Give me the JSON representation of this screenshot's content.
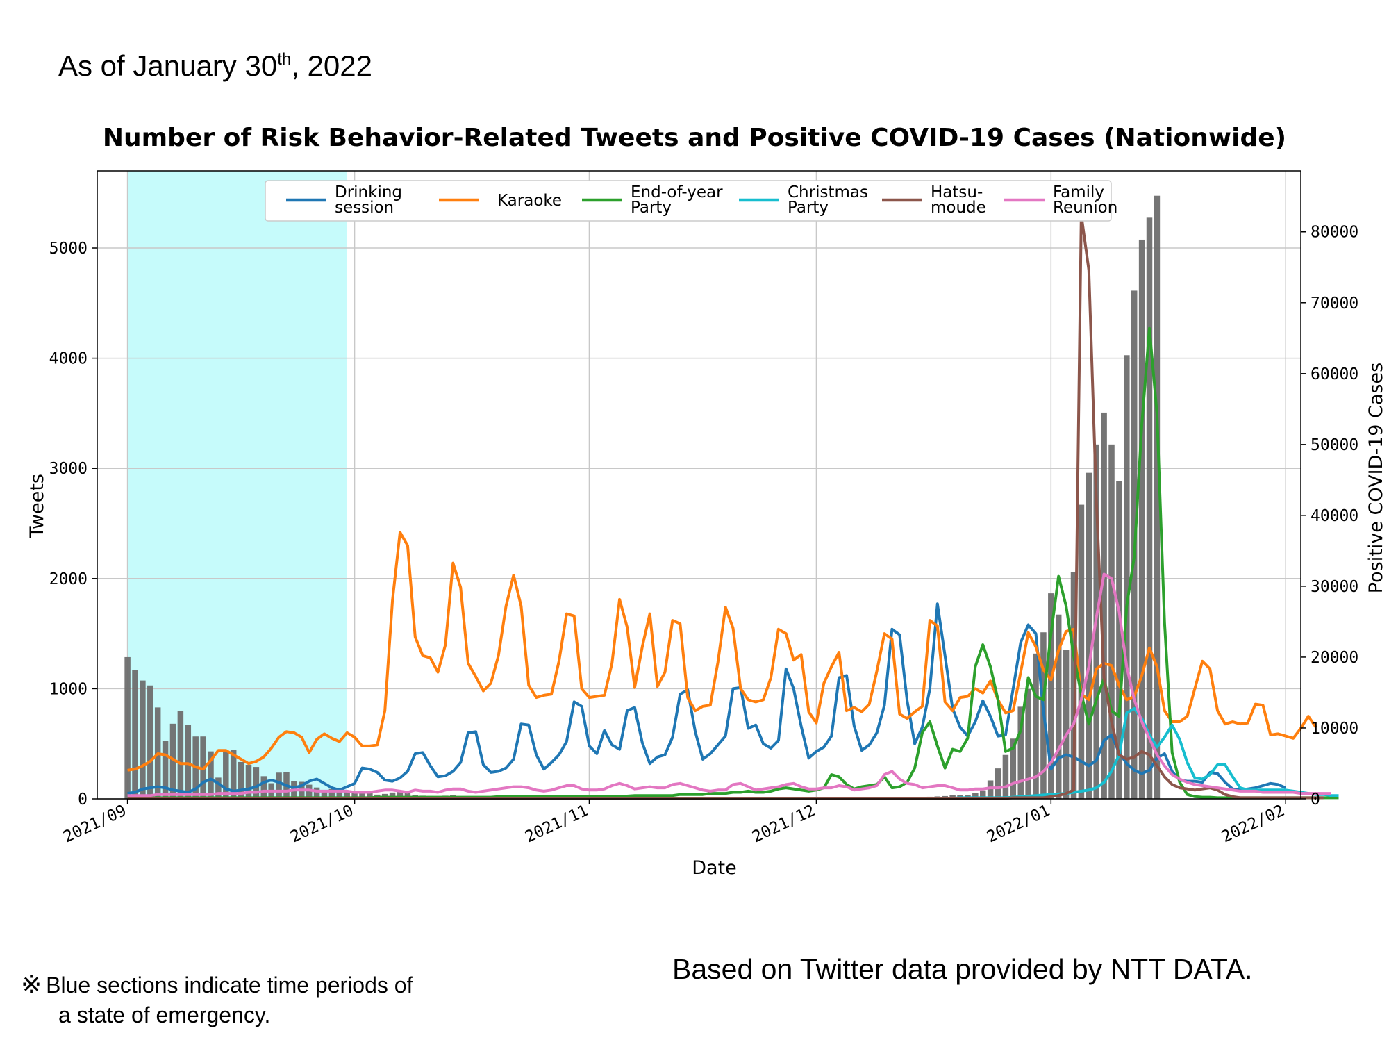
{
  "header": {
    "asof_prefix": "As of January 30",
    "asof_sup": "th",
    "asof_suffix": ", 2022"
  },
  "footer": {
    "note_mark": "※",
    "note_line1": "Blue sections indicate time periods of",
    "note_line2": "a state of emergency.",
    "source": "Based on Twitter data provided by NTT DATA."
  },
  "chart_data": {
    "type": "line",
    "title": "Number of Risk Behavior-Related Tweets and Positive COVID-19 Cases (Nationwide)",
    "xlabel": "Date",
    "ylabel": "Tweets",
    "y2label": "Positive COVID-19 Cases",
    "xlim": [
      "2021-08-28",
      "2022-02-03"
    ],
    "ylim": [
      0,
      5700
    ],
    "y2lim": [
      0,
      88600
    ],
    "x_ticks": [
      "2021/09",
      "2021/10",
      "2021/11",
      "2021/12",
      "2022/01",
      "2022/02"
    ],
    "y_ticks": [
      0,
      1000,
      2000,
      3000,
      4000,
      5000
    ],
    "y2_ticks": [
      0,
      10000,
      20000,
      30000,
      40000,
      50000,
      60000,
      70000,
      80000
    ],
    "grid": true,
    "legend_position": "top",
    "emergency_period": {
      "start": "2021-09-01",
      "end": "2021-09-30",
      "color": "#c6fbfb"
    },
    "bars": {
      "name": "Positive COVID-19 Cases",
      "axis": "right",
      "color": "#6e6e6e",
      "start": "2021-09-01",
      "values": [
        20000,
        18200,
        16700,
        16000,
        12900,
        8200,
        10600,
        12400,
        10400,
        8800,
        8800,
        6700,
        3000,
        6800,
        6900,
        5200,
        4800,
        4500,
        3200,
        2200,
        3700,
        3800,
        2500,
        2400,
        2000,
        1600,
        1200,
        1400,
        1000,
        1100,
        900,
        850,
        800,
        600,
        700,
        900,
        1000,
        800,
        500,
        450,
        400,
        350,
        450,
        500,
        300,
        300,
        250,
        300,
        250,
        200,
        200,
        150,
        200,
        150,
        150,
        120,
        150,
        100,
        100,
        120,
        100,
        90,
        100,
        80,
        80,
        90,
        70,
        70,
        80,
        60,
        60,
        70,
        60,
        60,
        60,
        70,
        60,
        60,
        70,
        80,
        60,
        60,
        50,
        70,
        60,
        50,
        60,
        60,
        50,
        70,
        70,
        80,
        60,
        60,
        60,
        70,
        80,
        80,
        90,
        100,
        120,
        150,
        180,
        200,
        220,
        250,
        300,
        350,
        400,
        500,
        550,
        550,
        800,
        1200,
        2600,
        4300,
        6200,
        8500,
        13000,
        15500,
        20500,
        23500,
        29000,
        26000,
        21000,
        32000,
        41500,
        46000,
        50000,
        54500,
        50000,
        44800,
        62600,
        71700,
        78900,
        82000,
        85100
      ]
    },
    "series": [
      {
        "name": "Drinking session",
        "legend": [
          "Drinking",
          "session"
        ],
        "color": "#1f77b4",
        "start": "2021-09-01",
        "values": [
          50,
          60,
          90,
          100,
          110,
          100,
          80,
          70,
          60,
          90,
          150,
          180,
          140,
          90,
          70,
          80,
          90,
          110,
          150,
          170,
          150,
          120,
          100,
          120,
          160,
          180,
          140,
          100,
          80,
          110,
          140,
          280,
          270,
          240,
          170,
          160,
          190,
          250,
          410,
          420,
          300,
          200,
          210,
          250,
          330,
          600,
          610,
          310,
          240,
          250,
          280,
          360,
          680,
          670,
          400,
          270,
          330,
          400,
          520,
          880,
          840,
          480,
          410,
          620,
          490,
          450,
          800,
          830,
          510,
          320,
          380,
          400,
          560,
          950,
          990,
          610,
          360,
          410,
          490,
          570,
          1000,
          1010,
          640,
          670,
          500,
          460,
          530,
          1180,
          1000,
          660,
          370,
          430,
          470,
          570,
          1100,
          1120,
          660,
          440,
          490,
          600,
          850,
          1540,
          1490,
          890,
          500,
          650,
          1000,
          1770,
          1300,
          820,
          650,
          570,
          700,
          890,
          750,
          570,
          580,
          1000,
          1420,
          1580,
          1500,
          800,
          270,
          370,
          400,
          380,
          340,
          300,
          350,
          530,
          580,
          420,
          320,
          260,
          230,
          260,
          370,
          410,
          250,
          170,
          160,
          160,
          150,
          240,
          230,
          150,
          90,
          80,
          90,
          100,
          120,
          140,
          130,
          100
        ]
      },
      {
        "name": "Karaoke",
        "legend": [
          "Karaoke"
        ],
        "color": "#ff7f0e",
        "start": "2021-09-01",
        "values": [
          260,
          270,
          300,
          340,
          410,
          400,
          360,
          320,
          320,
          290,
          270,
          350,
          440,
          440,
          400,
          360,
          320,
          340,
          380,
          460,
          560,
          610,
          600,
          560,
          420,
          540,
          590,
          550,
          520,
          600,
          560,
          480,
          480,
          490,
          800,
          1800,
          2420,
          2300,
          1470,
          1300,
          1280,
          1150,
          1400,
          2140,
          1920,
          1230,
          1110,
          980,
          1050,
          1300,
          1750,
          2030,
          1750,
          1030,
          920,
          940,
          950,
          1250,
          1680,
          1660,
          1000,
          920,
          930,
          940,
          1230,
          1810,
          1560,
          1010,
          1380,
          1680,
          1020,
          1150,
          1620,
          1590,
          920,
          800,
          840,
          850,
          1240,
          1740,
          1550,
          1000,
          900,
          880,
          900,
          1100,
          1540,
          1500,
          1260,
          1310,
          790,
          690,
          1050,
          1200,
          1330,
          800,
          830,
          790,
          860,
          1160,
          1500,
          1450,
          770,
          730,
          790,
          840,
          1620,
          1570,
          880,
          800,
          920,
          930,
          1000,
          960,
          1070,
          900,
          780,
          800,
          1150,
          1510,
          1380,
          1170,
          1080,
          1350,
          1520,
          1540,
          950,
          900,
          1180,
          1230,
          1210,
          1030,
          900,
          930,
          1120,
          1370,
          1200,
          800,
          700,
          700,
          750,
          1000,
          1250,
          1180,
          800,
          680,
          700,
          680,
          690,
          860,
          850,
          580,
          590,
          570,
          550,
          640,
          750,
          650
        ]
      },
      {
        "name": "End-of-year Party",
        "legend": [
          "End-of-year",
          "Party"
        ],
        "color": "#2ca02c",
        "start": "2021-09-01",
        "values": [
          10,
          10,
          10,
          10,
          10,
          10,
          10,
          10,
          10,
          10,
          10,
          10,
          10,
          10,
          10,
          10,
          10,
          10,
          10,
          10,
          10,
          10,
          10,
          10,
          10,
          10,
          10,
          10,
          10,
          10,
          10,
          10,
          10,
          15,
          15,
          15,
          15,
          15,
          15,
          15,
          15,
          15,
          15,
          15,
          15,
          15,
          15,
          15,
          15,
          20,
          20,
          20,
          20,
          20,
          20,
          20,
          20,
          20,
          20,
          20,
          20,
          20,
          25,
          25,
          25,
          25,
          25,
          30,
          30,
          30,
          30,
          30,
          30,
          40,
          40,
          40,
          40,
          50,
          50,
          50,
          60,
          60,
          70,
          60,
          60,
          70,
          90,
          100,
          90,
          80,
          70,
          80,
          100,
          220,
          200,
          130,
          90,
          110,
          120,
          130,
          200,
          100,
          110,
          150,
          280,
          600,
          700,
          480,
          280,
          450,
          430,
          550,
          1200,
          1400,
          1200,
          900,
          430,
          460,
          620,
          1100,
          930,
          900,
          1500,
          2020,
          1750,
          1300,
          950,
          680,
          900,
          1090,
          800,
          750,
          1750,
          2200,
          3400,
          4270,
          3500,
          1600,
          420,
          150,
          40,
          20,
          15,
          15,
          10,
          10,
          10,
          10,
          10,
          10,
          10,
          10,
          10,
          10,
          10,
          10,
          10,
          10,
          10,
          10,
          10
        ]
      },
      {
        "name": "Christmas Party",
        "legend": [
          "Christmas",
          "Party"
        ],
        "color": "#17becf",
        "start": "2021-09-01",
        "values": [
          5,
          5,
          5,
          5,
          5,
          5,
          5,
          5,
          5,
          5,
          5,
          5,
          5,
          5,
          5,
          5,
          5,
          5,
          5,
          5,
          5,
          5,
          5,
          5,
          5,
          5,
          5,
          5,
          5,
          5,
          5,
          5,
          5,
          5,
          5,
          5,
          5,
          5,
          5,
          5,
          5,
          5,
          5,
          5,
          5,
          5,
          5,
          5,
          5,
          5,
          5,
          5,
          5,
          5,
          5,
          5,
          5,
          5,
          5,
          5,
          5,
          5,
          5,
          5,
          5,
          5,
          5,
          5,
          5,
          5,
          5,
          5,
          5,
          5,
          5,
          5,
          5,
          5,
          5,
          5,
          5,
          5,
          5,
          5,
          5,
          5,
          5,
          5,
          5,
          5,
          5,
          5,
          5,
          5,
          5,
          5,
          5,
          5,
          5,
          5,
          5,
          5,
          5,
          5,
          5,
          5,
          5,
          5,
          5,
          5,
          10,
          10,
          10,
          10,
          10,
          10,
          10,
          15,
          20,
          25,
          30,
          35,
          40,
          45,
          50,
          60,
          70,
          80,
          100,
          150,
          250,
          400,
          780,
          820,
          730,
          580,
          470,
          560,
          670,
          540,
          330,
          190,
          180,
          220,
          310,
          310,
          200,
          100,
          80,
          80,
          80,
          80,
          80,
          80,
          70,
          60,
          50,
          40,
          40,
          30,
          30
        ]
      },
      {
        "name": "Hatsumoude",
        "legend": [
          "Hatsu-",
          "moude"
        ],
        "color": "#8c564b",
        "start": "2021-09-01",
        "values": [
          5,
          5,
          5,
          5,
          5,
          5,
          5,
          5,
          5,
          5,
          5,
          5,
          5,
          5,
          5,
          5,
          5,
          5,
          5,
          5,
          5,
          5,
          5,
          5,
          5,
          5,
          5,
          5,
          5,
          5,
          5,
          5,
          5,
          5,
          5,
          5,
          5,
          5,
          5,
          5,
          5,
          5,
          5,
          5,
          5,
          5,
          5,
          5,
          5,
          5,
          5,
          5,
          5,
          5,
          5,
          5,
          5,
          5,
          5,
          5,
          5,
          5,
          5,
          5,
          5,
          5,
          5,
          5,
          5,
          5,
          5,
          5,
          5,
          5,
          5,
          5,
          5,
          5,
          5,
          5,
          5,
          5,
          5,
          5,
          5,
          5,
          5,
          5,
          5,
          5,
          5,
          5,
          5,
          5,
          5,
          5,
          5,
          5,
          5,
          5,
          5,
          5,
          5,
          5,
          5,
          5,
          5,
          5,
          5,
          5,
          5,
          5,
          5,
          5,
          5,
          5,
          5,
          10,
          10,
          10,
          10,
          10,
          20,
          30,
          50,
          80,
          5300,
          4800,
          2700,
          1100,
          700,
          400,
          360,
          380,
          430,
          400,
          300,
          200,
          130,
          100,
          90,
          80,
          90,
          100,
          80,
          40,
          20,
          10,
          10,
          10,
          10,
          10,
          10,
          10,
          10,
          10,
          10,
          10,
          10
        ]
      },
      {
        "name": "Family Reunion",
        "legend": [
          "Family",
          "Reunion"
        ],
        "color": "#e377c2",
        "start": "2021-09-01",
        "values": [
          30,
          30,
          30,
          30,
          40,
          40,
          40,
          40,
          40,
          40,
          40,
          40,
          50,
          50,
          50,
          50,
          60,
          60,
          70,
          70,
          70,
          70,
          80,
          80,
          80,
          70,
          70,
          70,
          70,
          70,
          60,
          60,
          60,
          70,
          80,
          80,
          70,
          60,
          80,
          70,
          70,
          60,
          80,
          90,
          90,
          70,
          60,
          70,
          80,
          90,
          100,
          110,
          110,
          100,
          80,
          70,
          80,
          100,
          120,
          120,
          90,
          80,
          80,
          90,
          120,
          140,
          120,
          90,
          100,
          110,
          100,
          100,
          130,
          140,
          120,
          100,
          80,
          70,
          80,
          80,
          130,
          140,
          110,
          80,
          90,
          100,
          110,
          130,
          140,
          110,
          90,
          90,
          100,
          100,
          120,
          110,
          80,
          90,
          100,
          120,
          220,
          250,
          180,
          140,
          130,
          100,
          110,
          120,
          120,
          100,
          80,
          80,
          90,
          90,
          100,
          100,
          110,
          140,
          160,
          180,
          200,
          250,
          330,
          450,
          580,
          680,
          900,
          1200,
          1650,
          2040,
          2000,
          1700,
          1200,
          900,
          700,
          550,
          400,
          300,
          220,
          180,
          150,
          130,
          120,
          110,
          100,
          90,
          80,
          70,
          70,
          70,
          60,
          60,
          60,
          60,
          60,
          50,
          50,
          50,
          50,
          50
        ]
      }
    ]
  }
}
